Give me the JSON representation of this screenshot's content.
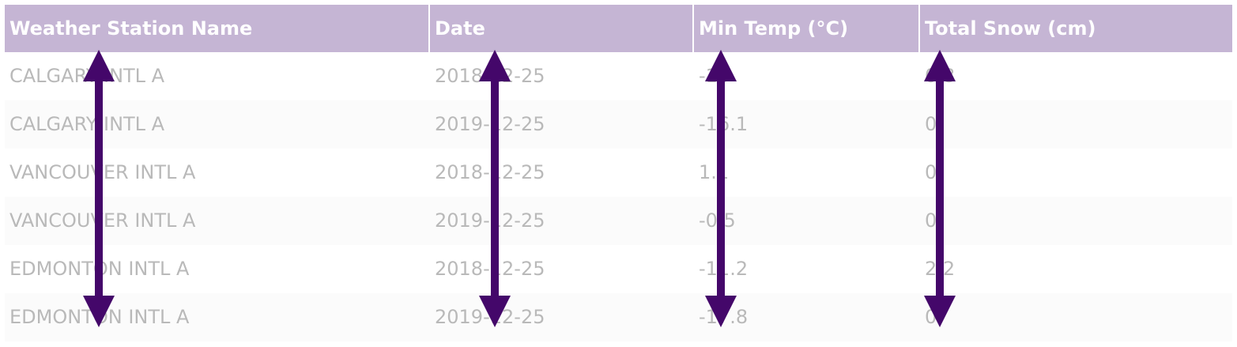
{
  "table": {
    "headers": [
      "Weather Station Name",
      "Date",
      "Min Temp (°C)",
      "Total Snow (cm)"
    ],
    "rows": [
      [
        "CALGARY INTL A",
        "2018-12-25",
        "-15",
        "0.8"
      ],
      [
        "CALGARY INTL A",
        "2019-12-25",
        "-16.1",
        "0"
      ],
      [
        "VANCOUVER INTL A",
        "2018-12-25",
        "1.1",
        "0"
      ],
      [
        "VANCOUVER INTL A",
        "2019-12-25",
        "-0.5",
        "0"
      ],
      [
        "EDMONTON INTL A",
        "2018-12-25",
        "-11.2",
        "2.2"
      ],
      [
        "EDMONTON INTL A",
        "2019-12-25",
        "-17.8",
        "0"
      ]
    ]
  },
  "colors": {
    "header_bg": "#c5b5d4",
    "header_text": "#ffffff",
    "cell_text": "#b9b9b9",
    "arrow": "#44076a"
  },
  "arrows": {
    "icon": "double-headed-vertical-arrow-icon",
    "count": 4
  }
}
